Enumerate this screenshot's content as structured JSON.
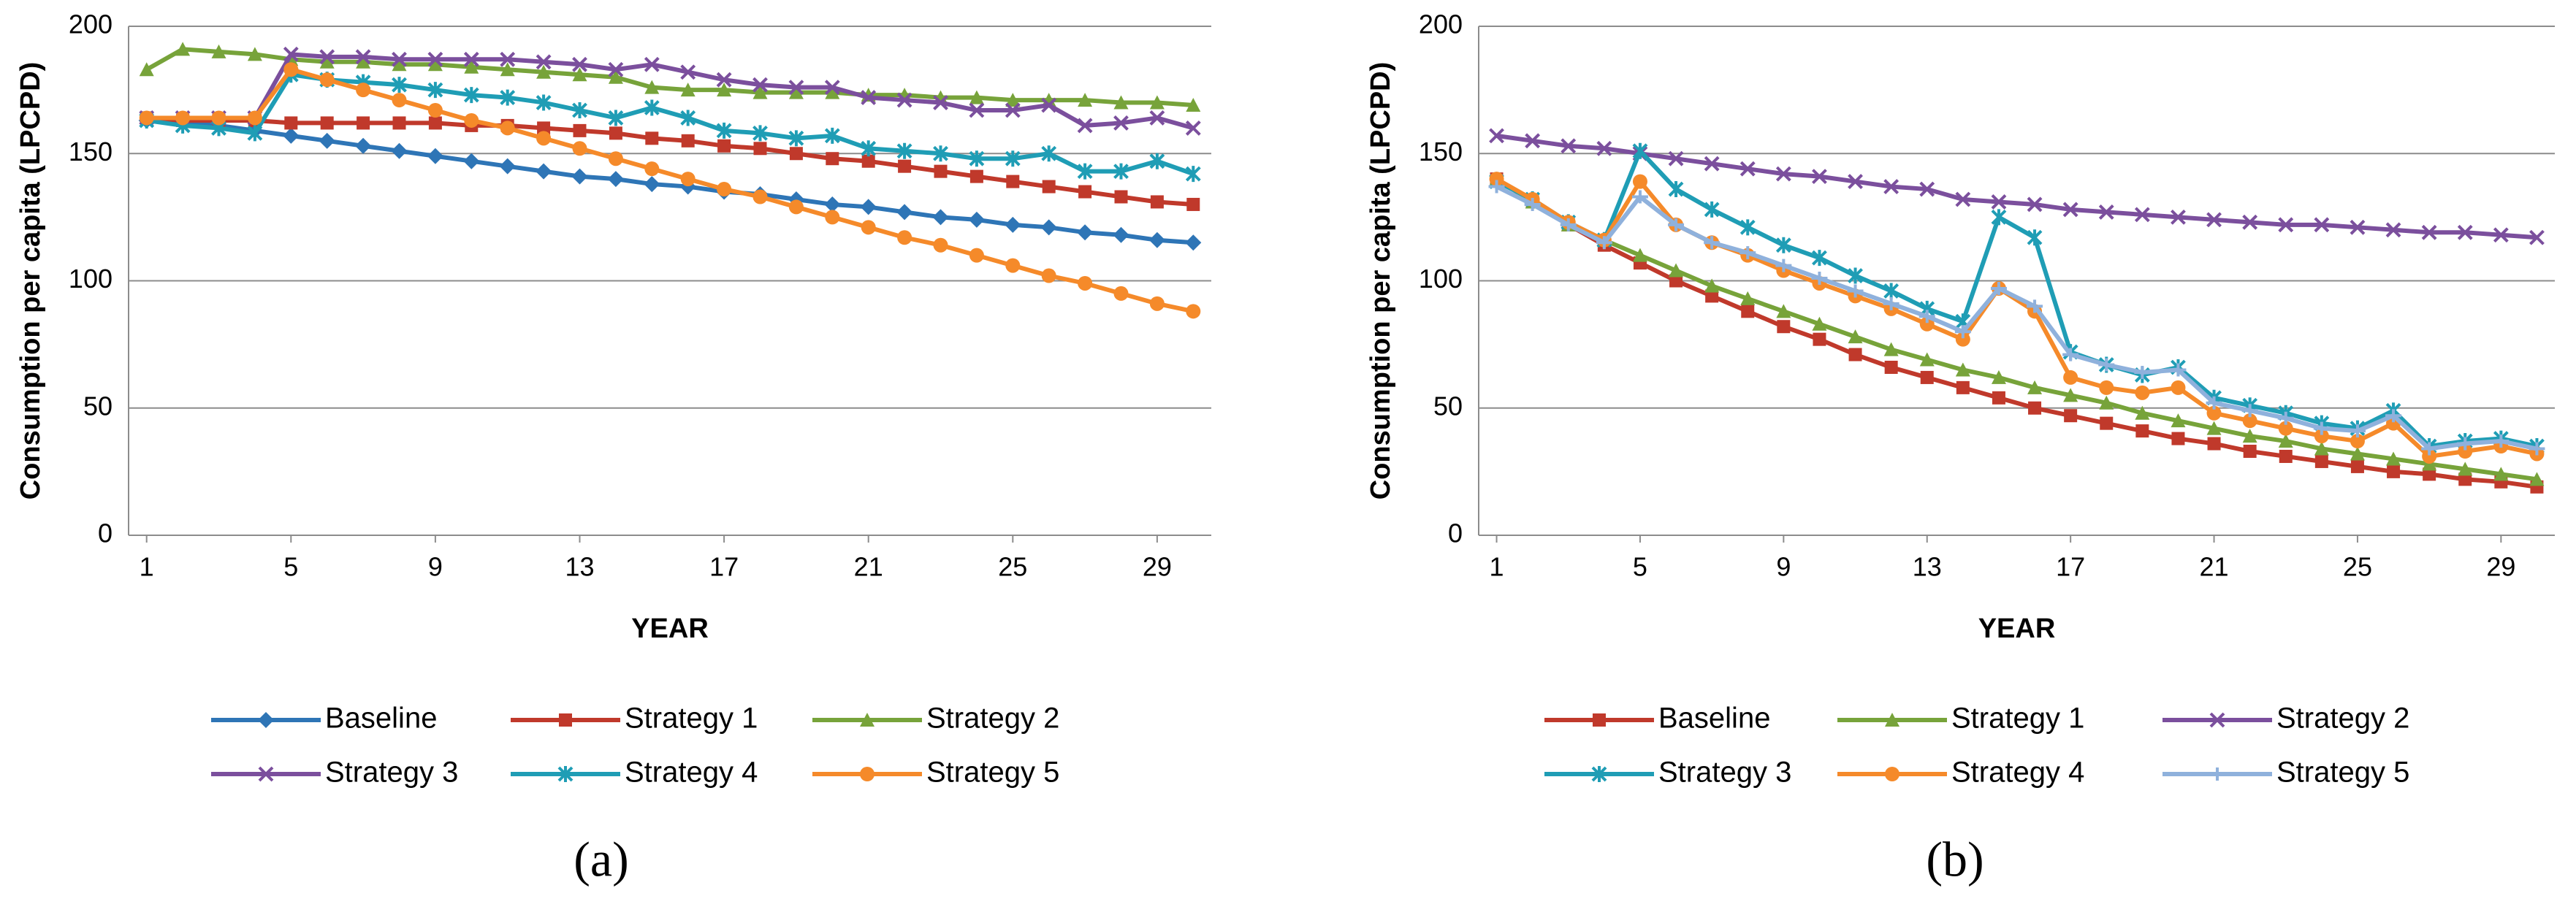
{
  "chart_data": [
    {
      "type": "line",
      "caption": "(a)",
      "xlabel": "YEAR",
      "ylabel": "Consumption per capita (LPCPD)",
      "x": [
        1,
        2,
        3,
        4,
        5,
        6,
        7,
        8,
        9,
        10,
        11,
        12,
        13,
        14,
        15,
        16,
        17,
        18,
        19,
        20,
        21,
        22,
        23,
        24,
        25,
        26,
        27,
        28,
        29,
        30
      ],
      "xlim": [
        0.5,
        30.5
      ],
      "xticks": [
        1,
        5,
        9,
        13,
        17,
        21,
        25,
        29
      ],
      "ylim": [
        0,
        200
      ],
      "yticks": [
        0,
        50,
        100,
        150,
        200
      ],
      "grid": true,
      "series": [
        {
          "name": "Baseline",
          "color": "#2e75b6",
          "marker": "diamond",
          "values": [
            163,
            162,
            161,
            159,
            157,
            155,
            153,
            151,
            149,
            147,
            145,
            143,
            141,
            140,
            138,
            137,
            135,
            134,
            132,
            130,
            129,
            127,
            125,
            124,
            122,
            121,
            119,
            118,
            116,
            115
          ]
        },
        {
          "name": "Strategy 1",
          "color": "#c0392b",
          "marker": "square",
          "values": [
            164,
            163,
            163,
            163,
            162,
            162,
            162,
            162,
            162,
            161,
            161,
            160,
            159,
            158,
            156,
            155,
            153,
            152,
            150,
            148,
            147,
            145,
            143,
            141,
            139,
            137,
            135,
            133,
            131,
            130
          ]
        },
        {
          "name": "Strategy 2",
          "color": "#77a33a",
          "marker": "triangle",
          "values": [
            183,
            191,
            190,
            189,
            187,
            186,
            186,
            185,
            185,
            184,
            183,
            182,
            181,
            180,
            176,
            175,
            175,
            174,
            174,
            174,
            173,
            173,
            172,
            172,
            171,
            171,
            171,
            170,
            170,
            169
          ]
        },
        {
          "name": "Strategy 3",
          "color": "#7b4f9d",
          "marker": "x",
          "values": [
            164,
            164,
            164,
            164,
            189,
            188,
            188,
            187,
            187,
            187,
            187,
            186,
            185,
            183,
            185,
            182,
            179,
            177,
            176,
            176,
            172,
            171,
            170,
            167,
            167,
            169,
            161,
            162,
            164,
            160
          ]
        },
        {
          "name": "Strategy 4",
          "color": "#1f9db5",
          "marker": "asterisk",
          "values": [
            163,
            161,
            160,
            158,
            181,
            179,
            178,
            177,
            175,
            173,
            172,
            170,
            167,
            164,
            168,
            164,
            159,
            158,
            156,
            157,
            152,
            151,
            150,
            148,
            148,
            150,
            143,
            143,
            147,
            142
          ]
        },
        {
          "name": "Strategy 5",
          "color": "#f58a2a",
          "marker": "circle",
          "values": [
            164,
            164,
            164,
            164,
            183,
            179,
            175,
            171,
            167,
            163,
            160,
            156,
            152,
            148,
            144,
            140,
            136,
            133,
            129,
            125,
            121,
            117,
            114,
            110,
            106,
            102,
            99,
            95,
            91,
            88
          ]
        }
      ]
    },
    {
      "type": "line",
      "caption": "(b)",
      "xlabel": "YEAR",
      "ylabel": "Consumption per capita (LPCPD)",
      "x": [
        1,
        2,
        3,
        4,
        5,
        6,
        7,
        8,
        9,
        10,
        11,
        12,
        13,
        14,
        15,
        16,
        17,
        18,
        19,
        20,
        21,
        22,
        23,
        24,
        25,
        26,
        27,
        28,
        29,
        30
      ],
      "xlim": [
        0.5,
        30.5
      ],
      "xticks": [
        1,
        5,
        9,
        13,
        17,
        21,
        25,
        29
      ],
      "ylim": [
        0,
        200
      ],
      "yticks": [
        0,
        50,
        100,
        150,
        200
      ],
      "grid": true,
      "series": [
        {
          "name": "Baseline",
          "color": "#c0392b",
          "marker": "square",
          "values": [
            140,
            131,
            122,
            114,
            107,
            100,
            94,
            88,
            82,
            77,
            71,
            66,
            62,
            58,
            54,
            50,
            47,
            44,
            41,
            38,
            36,
            33,
            31,
            29,
            27,
            25,
            24,
            22,
            21,
            19
          ]
        },
        {
          "name": "Strategy 1",
          "color": "#77a33a",
          "marker": "triangle",
          "values": [
            140,
            131,
            122,
            116,
            110,
            104,
            98,
            93,
            88,
            83,
            78,
            73,
            69,
            65,
            62,
            58,
            55,
            52,
            48,
            45,
            42,
            39,
            37,
            34,
            32,
            30,
            28,
            26,
            24,
            22
          ]
        },
        {
          "name": "Strategy 2",
          "color": "#7b4f9d",
          "marker": "x",
          "values": [
            157,
            155,
            153,
            152,
            150,
            148,
            146,
            144,
            142,
            141,
            139,
            137,
            136,
            132,
            131,
            130,
            128,
            127,
            126,
            125,
            124,
            123,
            122,
            122,
            121,
            120,
            119,
            119,
            118,
            117
          ]
        },
        {
          "name": "Strategy 3",
          "color": "#1f9db5",
          "marker": "asterisk",
          "values": [
            139,
            132,
            123,
            116,
            151,
            136,
            128,
            121,
            114,
            109,
            102,
            96,
            89,
            84,
            125,
            117,
            72,
            67,
            63,
            66,
            54,
            51,
            48,
            44,
            42,
            49,
            35,
            37,
            38,
            35
          ]
        },
        {
          "name": "Strategy 4",
          "color": "#f58a2a",
          "marker": "circle",
          "values": [
            140,
            132,
            123,
            116,
            139,
            122,
            115,
            110,
            104,
            99,
            94,
            89,
            83,
            77,
            97,
            88,
            62,
            58,
            56,
            58,
            48,
            45,
            42,
            39,
            37,
            44,
            31,
            33,
            35,
            32
          ]
        },
        {
          "name": "Strategy 5",
          "color": "#8fb1dc",
          "marker": "plus",
          "values": [
            137,
            130,
            122,
            115,
            133,
            122,
            115,
            111,
            106,
            101,
            96,
            91,
            86,
            80,
            97,
            90,
            71,
            67,
            64,
            65,
            52,
            49,
            46,
            42,
            41,
            47,
            34,
            36,
            37,
            34
          ]
        }
      ]
    }
  ]
}
